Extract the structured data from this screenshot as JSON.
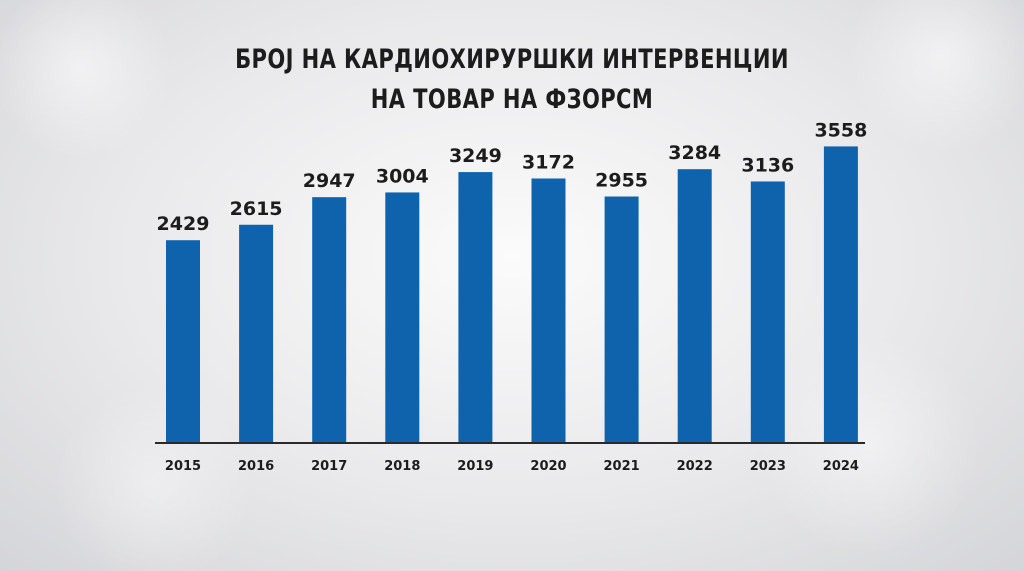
{
  "title": {
    "line1": "БРОЈ НА КАРДИОХИРУРШКИ ИНТЕРВЕНЦИИ",
    "line2": "НА ТОВАР НА ФЗОРСМ"
  },
  "colors": {
    "bar": "#0f63ad",
    "axis": "#2a2a2a",
    "text": "#1c1c1c"
  },
  "chart_data": {
    "type": "bar",
    "title": "БРОЈ НА КАРДИОХИРУРШКИ ИНТЕРВЕНЦИИ НА ТОВАР НА ФЗОРСМ",
    "categories": [
      "2015",
      "2016",
      "2017",
      "2018",
      "2019",
      "2020",
      "2021",
      "2022",
      "2023",
      "2024"
    ],
    "values": [
      2429,
      2615,
      2947,
      3004,
      3249,
      3172,
      2955,
      3284,
      3136,
      3558
    ],
    "ylim": [
      0,
      3900
    ],
    "grid": false,
    "legend": "none",
    "data_labels": true
  }
}
